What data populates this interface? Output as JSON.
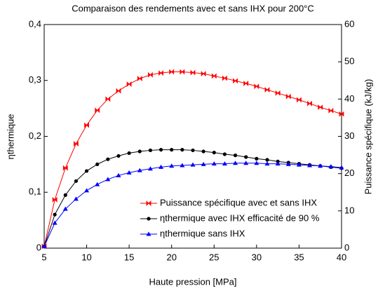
{
  "chart_data": {
    "type": "line",
    "title": "Comparaison des rendements avec et sans IHX pour 200°C",
    "xlabel": "Haute pression  [MPa]",
    "ylabel": "ηthermique",
    "y2label": "Puissance spécifique (kJ/kg)",
    "x": [
      5,
      6.25,
      7.5,
      8.75,
      10,
      11.25,
      12.5,
      13.75,
      15,
      16.25,
      17.5,
      18.75,
      20,
      21.25,
      22.5,
      23.75,
      25,
      26.25,
      27.5,
      28.75,
      30,
      31.25,
      32.5,
      33.75,
      35,
      36.25,
      37.5,
      38.75,
      40
    ],
    "series": [
      {
        "name": "Puissance spécifique avec et sans IHX",
        "color": "#ff0000",
        "axis": "y2",
        "marker": "bowtie",
        "values": [
          0.5,
          13,
          21.5,
          28,
          33,
          37,
          40,
          42.2,
          44,
          45.5,
          46.5,
          47,
          47.3,
          47.3,
          47.1,
          46.8,
          46.2,
          45.6,
          44.9,
          44.2,
          43.4,
          42.5,
          41.6,
          40.7,
          39.8,
          38.8,
          37.8,
          36.9,
          36
        ]
      },
      {
        "name": "ηthermique avec IHX efficacité de 90 %",
        "color": "#000000",
        "marker": "circle",
        "values": [
          0.003,
          0.06,
          0.095,
          0.12,
          0.138,
          0.15,
          0.159,
          0.165,
          0.17,
          0.173,
          0.175,
          0.176,
          0.176,
          0.176,
          0.175,
          0.173,
          0.171,
          0.168,
          0.166,
          0.163,
          0.16,
          0.158,
          0.155,
          0.153,
          0.151,
          0.149,
          0.147,
          0.145,
          0.143
        ]
      },
      {
        "name": "ηthermique sans IHX",
        "color": "#0000ff",
        "marker": "triangle",
        "values": [
          0.003,
          0.045,
          0.07,
          0.088,
          0.103,
          0.114,
          0.123,
          0.13,
          0.135,
          0.139,
          0.142,
          0.145,
          0.147,
          0.148,
          0.149,
          0.15,
          0.151,
          0.151,
          0.152,
          0.152,
          0.152,
          0.151,
          0.151,
          0.15,
          0.149,
          0.148,
          0.147,
          0.146,
          0.144
        ]
      }
    ],
    "xlim": [
      5,
      40
    ],
    "xticks": [
      5,
      10,
      15,
      20,
      25,
      30,
      35,
      40
    ],
    "ylim": [
      0,
      0.4
    ],
    "yticks": [
      0,
      {
        "value": 0.1,
        "label": "0,1"
      },
      {
        "value": 0.2,
        "label": "0,2"
      },
      {
        "value": 0.3,
        "label": "0,3"
      },
      {
        "value": 0.4,
        "label": "0,4"
      }
    ],
    "y2lim": [
      0,
      60
    ],
    "y2ticks": [
      0,
      10,
      20,
      30,
      40,
      50,
      60
    ],
    "legend": "lower right",
    "grid": false
  }
}
